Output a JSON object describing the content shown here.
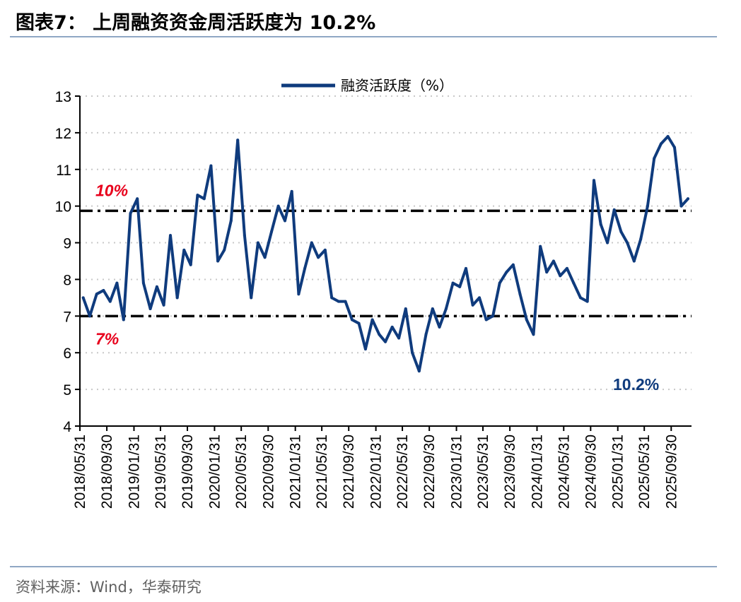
{
  "header": {
    "title": "图表7：  上周融资资金周活跃度为 10.2%"
  },
  "footer": {
    "source": "资料来源：Wind，华泰研究"
  },
  "colors": {
    "series": "#0f3b7d",
    "reference_label": "#e8001c",
    "rule": "#8fa7c4"
  },
  "chart_data": {
    "type": "line",
    "title": "",
    "xlabel": "",
    "ylabel": "",
    "ylim": [
      4,
      13
    ],
    "yticks": [
      "4",
      "5",
      "6",
      "7",
      "8",
      "9",
      "10",
      "11",
      "12",
      "13"
    ],
    "xlim": [
      "2018-05-31",
      "2025-12-31"
    ],
    "xticks": [
      "2018/05/31",
      "2018/09/30",
      "2019/01/31",
      "2019/05/31",
      "2019/09/30",
      "2020/01/31",
      "2020/05/31",
      "2020/09/30",
      "2021/01/31",
      "2021/05/31",
      "2021/09/30",
      "2022/01/31",
      "2022/05/31",
      "2022/09/30",
      "2023/01/31",
      "2023/05/31",
      "2023/09/30",
      "2024/01/31",
      "2024/05/31",
      "2024/09/30",
      "2025/01/31",
      "2025/05/31",
      "2025/09/30"
    ],
    "grid": "horizontal dotted",
    "legend_position": "top-center",
    "series": [
      {
        "name": "融资活跃度（%）",
        "color": "#0f3b7d",
        "x": [
          "2018-06",
          "2018-07",
          "2018-08",
          "2018-09",
          "2018-10",
          "2018-11",
          "2018-12",
          "2019-01",
          "2019-02",
          "2019-03",
          "2019-04",
          "2019-05",
          "2019-06",
          "2019-07",
          "2019-08",
          "2019-09",
          "2019-10",
          "2019-11",
          "2019-12",
          "2020-01",
          "2020-02",
          "2020-03",
          "2020-04",
          "2020-05",
          "2020-06",
          "2020-07",
          "2020-08",
          "2020-09",
          "2020-10",
          "2020-11",
          "2020-12",
          "2021-01",
          "2021-02",
          "2021-03",
          "2021-04",
          "2021-05",
          "2021-06",
          "2021-07",
          "2021-08",
          "2021-09",
          "2021-10",
          "2021-11",
          "2021-12",
          "2022-01",
          "2022-02",
          "2022-03",
          "2022-04",
          "2022-05",
          "2022-06",
          "2022-07",
          "2022-08",
          "2022-09",
          "2022-10",
          "2022-11",
          "2022-12",
          "2023-01",
          "2023-02",
          "2023-03",
          "2023-04",
          "2023-05",
          "2023-06",
          "2023-07",
          "2023-08",
          "2023-09",
          "2023-10",
          "2023-11",
          "2023-12",
          "2024-01",
          "2024-02",
          "2024-03",
          "2024-04",
          "2024-05",
          "2024-06",
          "2024-07",
          "2024-08",
          "2024-09",
          "2024-10",
          "2024-11",
          "2024-12",
          "2025-01",
          "2025-02",
          "2025-03",
          "2025-04",
          "2025-05",
          "2025-06",
          "2025-07",
          "2025-08",
          "2025-09",
          "2025-10",
          "2025-11",
          "2025-12"
        ],
        "values": [
          7.5,
          7.0,
          7.6,
          7.7,
          7.4,
          7.9,
          6.9,
          9.8,
          10.2,
          7.9,
          7.2,
          7.8,
          7.3,
          9.2,
          7.5,
          8.8,
          8.4,
          10.3,
          10.2,
          11.1,
          8.5,
          8.8,
          9.6,
          11.8,
          9.2,
          7.5,
          9.0,
          8.6,
          9.3,
          10.0,
          9.6,
          10.4,
          7.6,
          8.3,
          9.0,
          8.6,
          8.8,
          7.5,
          7.4,
          7.4,
          6.9,
          6.8,
          6.1,
          6.9,
          6.5,
          6.3,
          6.7,
          6.4,
          7.2,
          6.0,
          5.5,
          6.5,
          7.2,
          6.7,
          7.2,
          7.9,
          7.8,
          8.3,
          7.3,
          7.5,
          6.9,
          7.0,
          7.9,
          8.2,
          8.4,
          7.6,
          6.9,
          6.5,
          8.9,
          8.2,
          8.5,
          8.1,
          8.3,
          7.9,
          7.5,
          7.4,
          10.7,
          9.5,
          9.0,
          9.9,
          9.3,
          9.0,
          8.5,
          9.1,
          10.0,
          11.3,
          11.7,
          11.9,
          11.6,
          10.0,
          10.2
        ]
      }
    ],
    "reference_lines": [
      {
        "y": 9.87,
        "label": "10%"
      },
      {
        "y": 7.0,
        "label": "7%"
      }
    ],
    "annotations": [
      {
        "text": "10.2%"
      }
    ]
  }
}
